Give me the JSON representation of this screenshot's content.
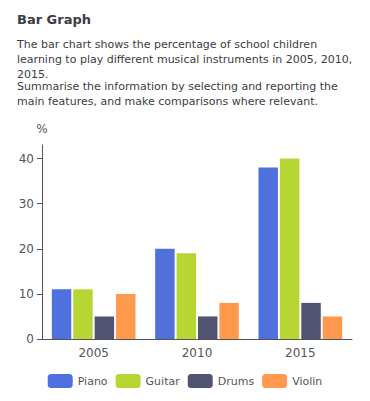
{
  "chart_data": {
    "type": "bar",
    "title": "Bar Graph",
    "subtitle": "The bar chart shows the percentage of school children learning to play different musical instruments in 2005, 2010, 2015.",
    "annotations": [
      "Summarise the information by selecting and reporting the main features, and make comparisons where relevant."
    ],
    "categories": [
      "2005",
      "2010",
      "2015"
    ],
    "series": [
      {
        "name": "Piano",
        "values": [
          11,
          20,
          38
        ]
      },
      {
        "name": "Guitar",
        "values": [
          11,
          19,
          40
        ]
      },
      {
        "name": "Drums",
        "values": [
          5,
          5,
          8
        ]
      },
      {
        "name": "Violin",
        "values": [
          10,
          8,
          5
        ]
      }
    ],
    "ylabel": "%",
    "ylim": [
      0,
      43
    ],
    "yticks": [
      0,
      10,
      20,
      30,
      40
    ],
    "grid": false,
    "legend": "bottom"
  }
}
